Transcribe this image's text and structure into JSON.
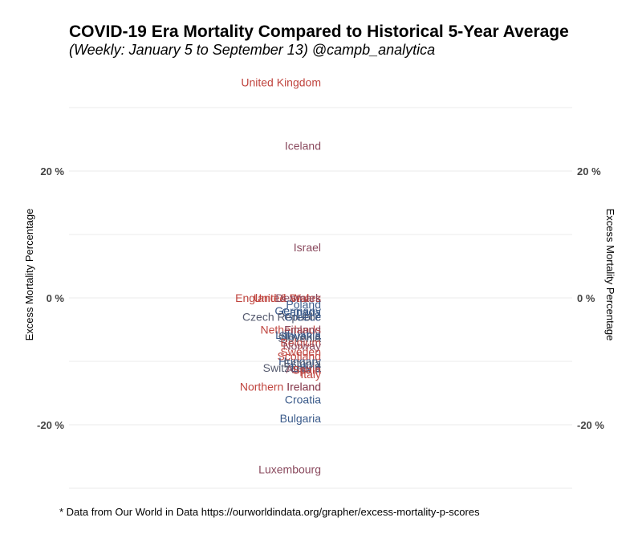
{
  "chart_data": {
    "type": "scatter",
    "title": "COVID-19 Era Mortality Compared to Historical 5-Year Average",
    "subtitle": "(Weekly: January 5 to September 13) @campb_analytica",
    "ylabel": "Excess Mortality Percentage",
    "ylabel_right": "Excess Mortality Percentage",
    "caption": "* Data from Our World in Data https://ourworldindata.org/grapher/excess-mortality-p-scores",
    "ylim": [
      -30,
      30
    ],
    "y_ticks": [
      {
        "value": 20,
        "label": "20 %"
      },
      {
        "value": 0,
        "label": "0 %"
      },
      {
        "value": -20,
        "label": "-20 %"
      }
    ],
    "minor_gridlines": [
      30,
      10,
      -10,
      -30
    ],
    "grid": true,
    "legend": "none",
    "points": [
      {
        "label": "United Kingdom",
        "value": 34.0,
        "color": "#c0453f"
      },
      {
        "label": "Iceland",
        "value": 24.0,
        "color": "#8a4a5e"
      },
      {
        "label": "Israel",
        "value": 8.0,
        "color": "#8a4a5e"
      },
      {
        "label": "England & Wales",
        "value": 0.0,
        "color": "#c0453f"
      },
      {
        "label": "United States",
        "value": 0.0,
        "color": "#c0453f"
      },
      {
        "label": "Denmark",
        "value": 0.0,
        "color": "#8a4a5e"
      },
      {
        "label": "Poland",
        "value": -1.0,
        "color": "#3a5a8a"
      },
      {
        "label": "Germany",
        "value": -2.0,
        "color": "#3a5a8a"
      },
      {
        "label": "Canada",
        "value": -2.2,
        "color": "#3a5a8a"
      },
      {
        "label": "Czech Republic",
        "value": -3.0,
        "color": "#555a6e"
      },
      {
        "label": "Greece",
        "value": -3.0,
        "color": "#3a5a8a"
      },
      {
        "label": "Netherlands",
        "value": -5.0,
        "color": "#c0453f"
      },
      {
        "label": "Finland",
        "value": -5.0,
        "color": "#8a4a5e"
      },
      {
        "label": "Lithuania",
        "value": -5.8,
        "color": "#3a5a8a"
      },
      {
        "label": "Slovakia",
        "value": -6.0,
        "color": "#3a5a8a"
      },
      {
        "label": "Slovenia",
        "value": -6.3,
        "color": "#555a6e"
      },
      {
        "label": "Belgium",
        "value": -7.0,
        "color": "#c0453f"
      },
      {
        "label": "Norway",
        "value": -7.5,
        "color": "#8a4a5e"
      },
      {
        "label": "Sweden",
        "value": -8.5,
        "color": "#c0453f"
      },
      {
        "label": "Scotland",
        "value": -9.2,
        "color": "#c0453f"
      },
      {
        "label": "Hungary",
        "value": -10.0,
        "color": "#3a5a8a"
      },
      {
        "label": "Estonia",
        "value": -10.3,
        "color": "#555a6e"
      },
      {
        "label": "Switzerland",
        "value": -11.0,
        "color": "#555a6e"
      },
      {
        "label": "Latvia",
        "value": -11.0,
        "color": "#3a5a8a"
      },
      {
        "label": "Austria",
        "value": -11.2,
        "color": "#8a4a5e"
      },
      {
        "label": "Spain",
        "value": -11.3,
        "color": "#c0453f"
      },
      {
        "label": "Italy",
        "value": -12.0,
        "color": "#c0453f"
      },
      {
        "label": "Northern Ireland",
        "value": -14.0,
        "color": "#c0453f"
      },
      {
        "label": "Ireland",
        "value": -14.0,
        "color": "#8a4a5e"
      },
      {
        "label": "Croatia",
        "value": -16.0,
        "color": "#3a5a8a"
      },
      {
        "label": "Bulgaria",
        "value": -19.0,
        "color": "#3a5a8a"
      },
      {
        "label": "Luxembourg",
        "value": -27.0,
        "color": "#8a4a5e"
      }
    ]
  }
}
